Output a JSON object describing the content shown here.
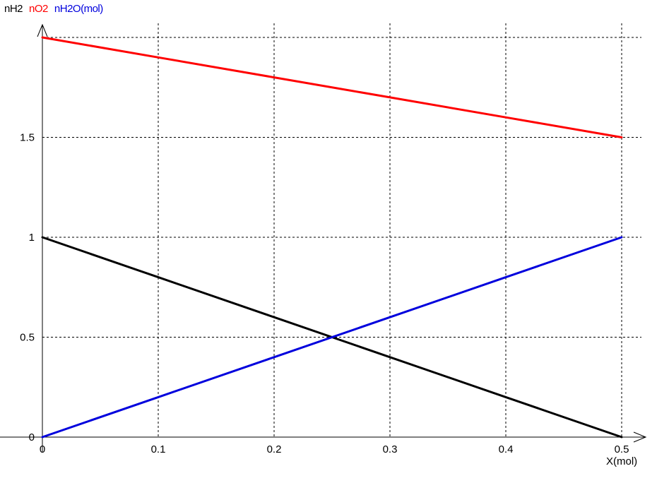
{
  "chart_data": {
    "type": "line",
    "title": "",
    "xlabel": "X(mol)",
    "ylabel": "",
    "xlim": [
      0,
      0.5
    ],
    "ylim": [
      0,
      2
    ],
    "grid": true,
    "legend_position": "top-left",
    "x_ticks": [
      "0",
      "0.1",
      "0.2",
      "0.3",
      "0.4",
      "0.5"
    ],
    "y_ticks": [
      "0",
      "0.5",
      "1",
      "1.5"
    ],
    "x": [
      0,
      0.1,
      0.2,
      0.3,
      0.4,
      0.5
    ],
    "series": [
      {
        "name": "nH2",
        "color": "#000000",
        "values": [
          1,
          0.8,
          0.6,
          0.4,
          0.2,
          0
        ]
      },
      {
        "name": "nO2",
        "color": "#ff0000",
        "values": [
          2,
          1.9,
          1.8,
          1.7,
          1.6,
          1.5
        ]
      },
      {
        "name": "nH2O(mol)",
        "color": "#0000dd",
        "values": [
          0,
          0.2,
          0.4,
          0.6,
          0.8,
          1
        ]
      }
    ]
  }
}
